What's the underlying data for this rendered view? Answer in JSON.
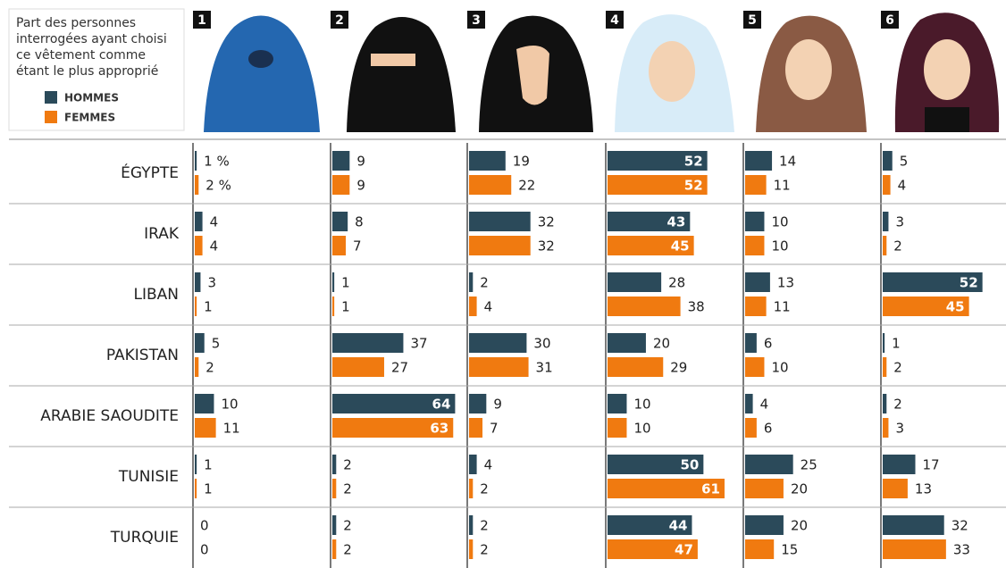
{
  "chart_data": {
    "type": "bar",
    "legend_title": [
      "Part des personnes",
      "interrogées ayant choisi",
      "ce vêtement comme",
      "étant le plus approprié"
    ],
    "panels": [
      "1",
      "2",
      "3",
      "4",
      "5",
      "6"
    ],
    "categories": [
      "ÉGYPTE",
      "IRAK",
      "LIBAN",
      "PAKISTAN",
      "ARABIE SAOUDITE",
      "TUNISIE",
      "TURQUIE"
    ],
    "xlim": [
      0,
      68
    ],
    "series": [
      {
        "name": "HOMMES",
        "color": "#2b4a5a",
        "values": [
          [
            1,
            9,
            19,
            52,
            14,
            5
          ],
          [
            4,
            8,
            32,
            43,
            10,
            3
          ],
          [
            3,
            1,
            2,
            28,
            13,
            52
          ],
          [
            5,
            37,
            30,
            20,
            6,
            1
          ],
          [
            10,
            64,
            9,
            10,
            4,
            2
          ],
          [
            1,
            2,
            4,
            50,
            25,
            17
          ],
          [
            0,
            2,
            2,
            44,
            20,
            32
          ]
        ],
        "value_labels": [
          [
            "1 %",
            "9",
            "19",
            "52",
            "14",
            "5"
          ],
          [
            "4",
            "8",
            "32",
            "43",
            "10",
            "3"
          ],
          [
            "3",
            "1",
            "2",
            "28",
            "13",
            "52"
          ],
          [
            "5",
            "37",
            "30",
            "20",
            "6",
            "1"
          ],
          [
            "10",
            "64",
            "9",
            "10",
            "4",
            "2"
          ],
          [
            "1",
            "2",
            "4",
            "50",
            "25",
            "17"
          ],
          [
            "0",
            "2",
            "2",
            "44",
            "20",
            "32"
          ]
        ]
      },
      {
        "name": "FEMMES",
        "color": "#f07a10",
        "values": [
          [
            2,
            9,
            22,
            52,
            11,
            4
          ],
          [
            4,
            7,
            32,
            45,
            10,
            2
          ],
          [
            1,
            1,
            4,
            38,
            11,
            45
          ],
          [
            2,
            27,
            31,
            29,
            10,
            2
          ],
          [
            11,
            63,
            7,
            10,
            6,
            3
          ],
          [
            1,
            2,
            2,
            61,
            20,
            13
          ],
          [
            0,
            2,
            2,
            47,
            15,
            33
          ]
        ],
        "value_labels": [
          [
            "2 %",
            "9",
            "22",
            "52",
            "11",
            "4"
          ],
          [
            "4",
            "7",
            "32",
            "45",
            "10",
            "2"
          ],
          [
            "1",
            "1",
            "4",
            "38",
            "11",
            "45"
          ],
          [
            "2",
            "27",
            "31",
            "29",
            "10",
            "2"
          ],
          [
            "11",
            "63",
            "7",
            "10",
            "6",
            "3"
          ],
          [
            "1",
            "2",
            "2",
            "61",
            "20",
            "13"
          ],
          [
            "0",
            "2",
            "2",
            "47",
            "15",
            "33"
          ]
        ]
      }
    ]
  }
}
